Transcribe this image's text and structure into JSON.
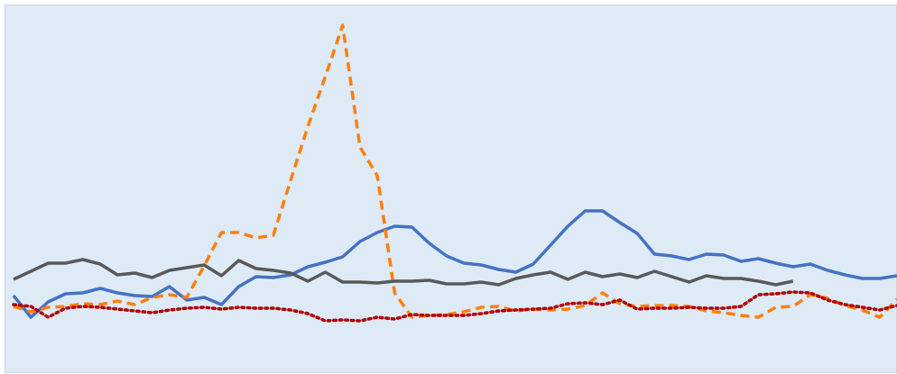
{
  "chart_data": {
    "type": "line",
    "categories": [
      null,
      null,
      null,
      null,
      null,
      null,
      null,
      null,
      null,
      null,
      null,
      null,
      null,
      null,
      null,
      null,
      null,
      null,
      null,
      null,
      null,
      null,
      null,
      null,
      null,
      null,
      null,
      null,
      null,
      null,
      null,
      null,
      null,
      null,
      null,
      null,
      null,
      null,
      null,
      null,
      null,
      null,
      null,
      null,
      null,
      null,
      null,
      null,
      null,
      null,
      null,
      null
    ],
    "ylim": [
      0,
      405
    ],
    "series": [
      {
        "color": "#4472c4",
        "dash": "solid",
        "values": [
          82,
          58,
          75,
          84,
          85,
          90,
          85,
          82,
          81,
          92,
          77,
          80,
          72,
          92,
          103,
          102,
          105,
          114,
          119,
          125,
          142,
          152,
          159,
          158,
          140,
          126,
          118,
          116,
          111,
          108,
          117,
          138,
          159,
          176,
          176,
          163,
          151,
          128,
          126,
          122,
          128,
          127,
          120,
          123,
          118,
          114,
          117,
          110,
          105,
          101,
          101,
          104
        ]
      },
      {
        "color": "#ff7f0e",
        "dash": "dashed",
        "values": [
          70,
          64,
          69,
          70,
          73,
          72,
          76,
          72,
          80,
          83,
          80,
          115,
          152,
          152,
          146,
          149,
          210,
          270,
          325,
          382,
          247,
          215,
          85,
          58,
          60,
          61,
          64,
          69,
          70,
          65,
          67,
          66,
          67,
          71,
          85,
          73,
          70,
          71,
          71,
          70,
          65,
          63,
          60,
          58,
          69,
          70,
          83,
          79,
          71,
          66,
          58,
          78
        ]
      },
      {
        "color": "#595959",
        "dash": "solid",
        "values": [
          100,
          109,
          118,
          118,
          122,
          117,
          105,
          107,
          102,
          110,
          113,
          116,
          104,
          121,
          112,
          110,
          107,
          98,
          108,
          97,
          97,
          96,
          98,
          98,
          99,
          95,
          95,
          97,
          94,
          101,
          105,
          108,
          100,
          108,
          103,
          106,
          102,
          109,
          103,
          97,
          104,
          101,
          101,
          98,
          94,
          98,
          null,
          null,
          null,
          null,
          null,
          null
        ]
      },
      {
        "color": "#b00000",
        "dash": "dotted",
        "values": [
          72,
          70,
          58,
          68,
          70,
          69,
          67,
          65,
          63,
          66,
          68,
          69,
          67,
          69,
          68,
          68,
          66,
          62,
          54,
          55,
          54,
          58,
          56,
          61,
          60,
          60,
          60,
          62,
          65,
          66,
          67,
          68,
          73,
          74,
          72,
          77,
          67,
          68,
          68,
          69,
          68,
          68,
          70,
          83,
          84,
          86,
          85,
          77,
          72,
          69,
          66,
          71
        ]
      }
    ]
  }
}
